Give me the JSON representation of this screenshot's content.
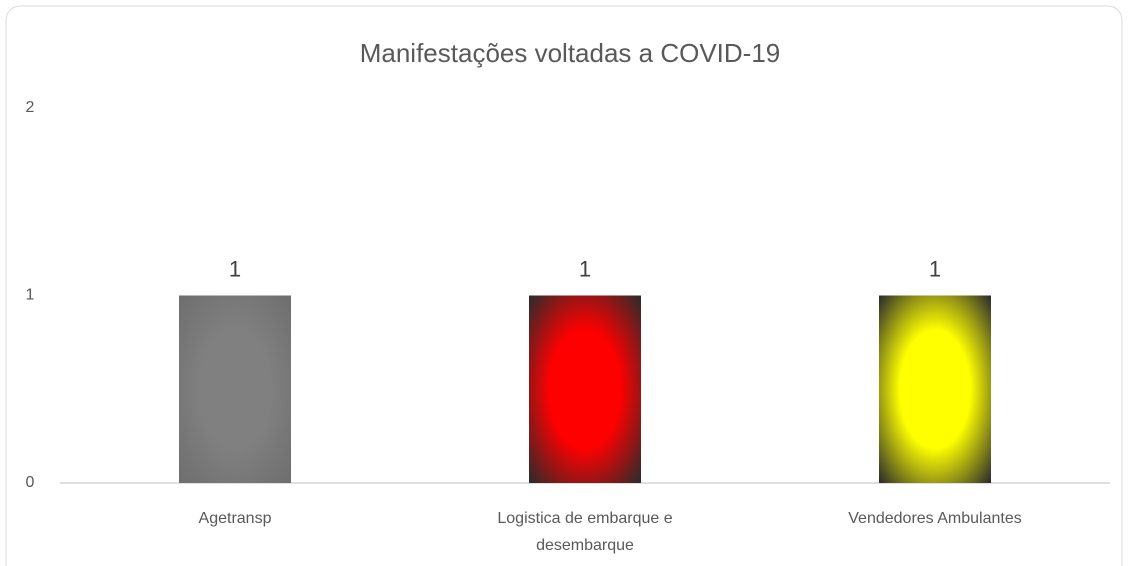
{
  "chart_data": {
    "type": "bar",
    "title": "Manifestações voltadas a COVID-19",
    "categories": [
      "Agetransp",
      "Logistica de embarque e desembarque",
      "Vendedores Ambulantes"
    ],
    "values": [
      1,
      1,
      1
    ],
    "colors": [
      "#808080",
      "#ff0000",
      "#ffff00"
    ],
    "ylim": [
      0,
      2
    ],
    "yticks": [
      0,
      1,
      2
    ],
    "grid": false
  }
}
